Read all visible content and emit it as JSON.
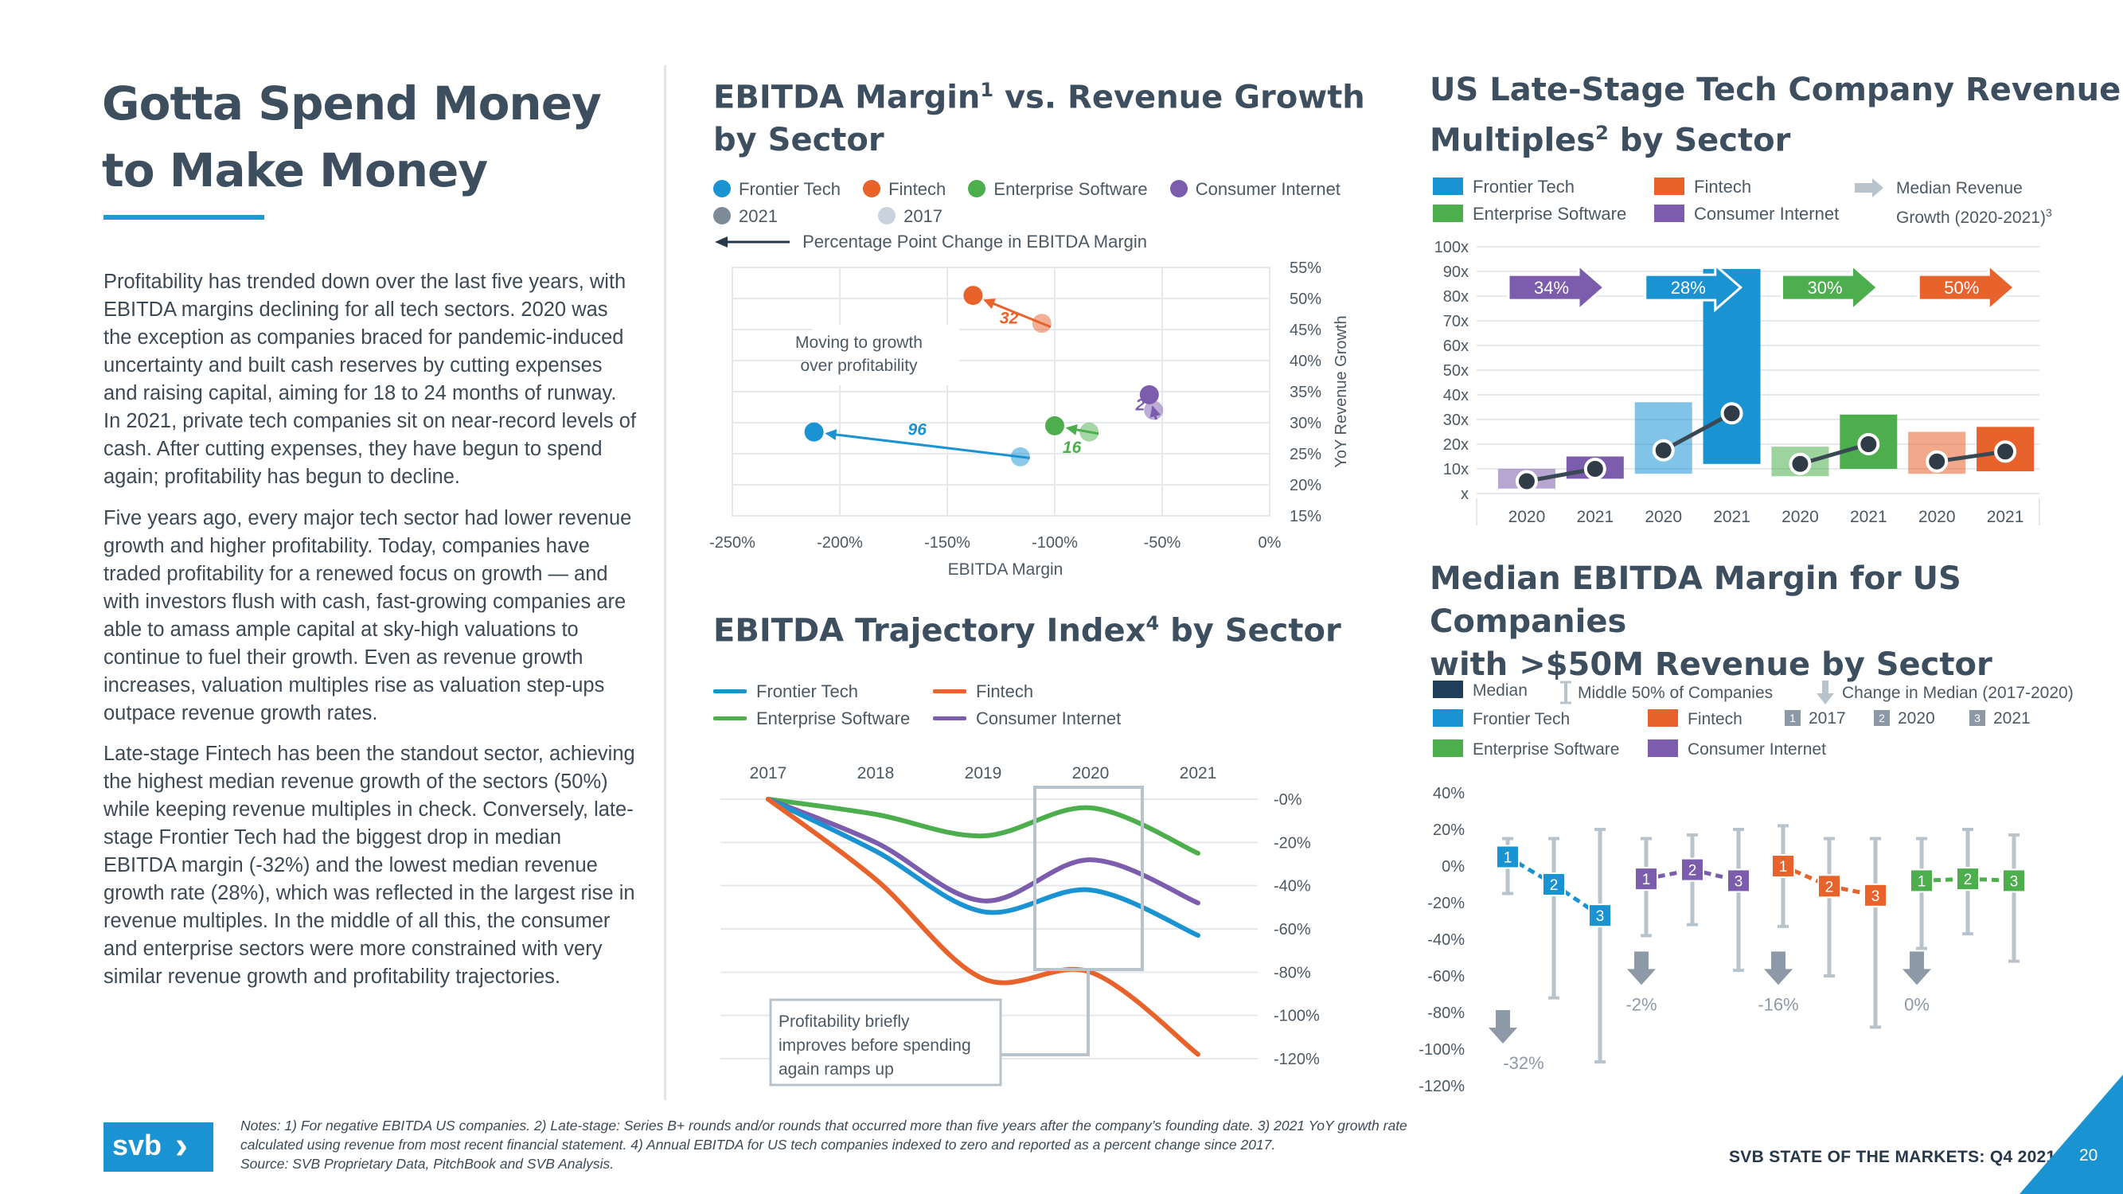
{
  "page": {
    "title_line1": "Gotta Spend Money",
    "title_line2": "to Make Money",
    "paragraphs": [
      "Profitability has trended down over the last five years, with EBITDA margins declining for all tech sectors. 2020 was the exception as companies braced for pandemic-induced uncertainty and built cash reserves by cutting expenses and raising capital, aiming for 18 to 24 months of runway. In 2021, private tech companies sit on near-record levels of cash. After cutting expenses, they have begun to spend again; profitability has begun to decline.",
      "Five years ago, every major tech sector had lower revenue growth and higher profitability. Today, companies have traded profitability for a renewed focus on growth — and with investors flush with cash, fast-growing companies are able to amass ample capital at sky-high valuations to continue to fuel their growth. Even as revenue growth increases, valuation multiples rise as valuation step-ups outpace revenue growth rates.",
      "Late-stage Fintech has been the standout sector, achieving the highest median revenue growth of the sectors (50%) while keeping revenue multiples in check. Conversely, late-stage Frontier Tech had the biggest drop in median EBITDA margin (-32%) and the lowest median revenue growth rate (28%), which was reflected in the largest rise in revenue multiples. In the middle of all this, the consumer and enterprise sectors were more constrained with very similar revenue growth and profitability trajectories."
    ],
    "notes_line1": "Notes: 1) For negative EBITDA US companies. 2) Late-stage: Series B+ rounds and/or rounds that occurred more than five years after the company’s founding date. 3) 2021 YoY growth rate",
    "notes_line2": "calculated using revenue from most recent financial statement. 4) Annual EBITDA for US tech companies indexed to zero and reported as a percent change since 2017.",
    "notes_line3": "Source: SVB Proprietary Data, PitchBook and SVB Analysis.",
    "logo_text": "svb",
    "logo_arrow": "›",
    "footer": "SVB STATE OF THE MARKETS: Q4 2021",
    "page_number": "20"
  },
  "colors": {
    "frontier": "#1a93d3",
    "fintech": "#e8622c",
    "enterprise": "#4cae4c",
    "consumer": "#7b5cad",
    "navy": "#1f3e5a",
    "grey": "#b9c3cc"
  },
  "chart_data": [
    {
      "id": "ebitda_vs_growth",
      "type": "scatter",
      "title": "EBITDA Margin",
      "title_sup": "1",
      "title_rest": " vs. Revenue Growth",
      "title_line2": "by Sector",
      "legend": [
        "Frontier Tech",
        "Fintech",
        "Enterprise Software",
        "Consumer Internet",
        "2021",
        "2017"
      ],
      "legend_arrow": "Percentage Point Change in EBITDA Margin",
      "annotation_line1": "Moving to growth",
      "annotation_line2": "over profitability",
      "xlabel": "EBITDA Margin",
      "ylabel": "YoY Revenue Growth",
      "xlim": [
        -250,
        0
      ],
      "ylim": [
        15,
        55
      ],
      "x_ticks": [
        "-250%",
        "-200%",
        "-150%",
        "-100%",
        "-50%",
        "0%"
      ],
      "y_ticks": [
        "55%",
        "50%",
        "45%",
        "40%",
        "35%",
        "30%",
        "25%",
        "20%",
        "15%"
      ],
      "series": [
        {
          "name": "Frontier Tech",
          "x2017": -116,
          "y2017": 24.5,
          "x2021": -212,
          "y2021": 28.5,
          "change": "96"
        },
        {
          "name": "Fintech",
          "x2017": -106,
          "y2017": 46,
          "x2021": -138,
          "y2021": 50.5,
          "change": "32"
        },
        {
          "name": "Enterprise Software",
          "x2017": -84,
          "y2017": 28.5,
          "x2021": -100,
          "y2021": 29.5,
          "change": "16"
        },
        {
          "name": "Consumer Internet",
          "x2017": -54,
          "y2017": 32,
          "x2021": -56,
          "y2021": 34.5,
          "change": "2"
        }
      ]
    },
    {
      "id": "revenue_multiples",
      "type": "bar",
      "title": "US Late-Stage Tech Company Revenue",
      "title_line2": "Multiples",
      "title_sup": "2",
      "title_rest": " by Sector",
      "legend": [
        "Frontier Tech",
        "Fintech",
        "Enterprise Software",
        "Consumer Internet"
      ],
      "legend_arrow_line1": "Median Revenue",
      "legend_arrow_line2": "Growth (2020-2021)",
      "legend_arrow_sup": "3",
      "ylim": [
        0,
        100
      ],
      "y_ticks": [
        "100x",
        "90x",
        "80x",
        "70x",
        "60x",
        "50x",
        "40x",
        "30x",
        "20x",
        "10x",
        "x"
      ],
      "categories": [
        "2020",
        "2021",
        "2020",
        "2021",
        "2020",
        "2021",
        "2020",
        "2021"
      ],
      "sectors": [
        {
          "name": "Consumer Internet",
          "growth": "34%",
          "y2020": {
            "low": 2,
            "high": 10,
            "median": 5
          },
          "y2021": {
            "low": 6,
            "high": 15,
            "median": 10
          }
        },
        {
          "name": "Frontier Tech",
          "growth": "28%",
          "y2020": {
            "low": 8,
            "high": 37,
            "median": 17.5
          },
          "y2021": {
            "low": 12,
            "high": 91,
            "median": 32.5
          }
        },
        {
          "name": "Enterprise Software",
          "growth": "30%",
          "y2020": {
            "low": 7,
            "high": 19,
            "median": 12
          },
          "y2021": {
            "low": 10,
            "high": 32,
            "median": 20
          }
        },
        {
          "name": "Fintech",
          "growth": "50%",
          "y2020": {
            "low": 8,
            "high": 25,
            "median": 13
          },
          "y2021": {
            "low": 9,
            "high": 27,
            "median": 17
          }
        }
      ]
    },
    {
      "id": "ebitda_trajectory",
      "type": "line",
      "title": "EBITDA Trajectory Index",
      "title_sup": "4",
      "title_rest": " by Sector",
      "legend": [
        "Frontier Tech",
        "Fintech",
        "Enterprise Software",
        "Consumer Internet"
      ],
      "x": [
        "2017",
        "2018",
        "2019",
        "2020",
        "2021"
      ],
      "ylim": [
        -120,
        0
      ],
      "y_ticks": [
        "-0%",
        "-20%",
        "-40%",
        "-60%",
        "-80%",
        "-100%",
        "-120%"
      ],
      "series": [
        {
          "name": "Enterprise Software",
          "values": [
            0,
            -7,
            -17,
            -4,
            -25
          ]
        },
        {
          "name": "Consumer Internet",
          "values": [
            0,
            -20,
            -47,
            -28,
            -48
          ]
        },
        {
          "name": "Frontier Tech",
          "values": [
            0,
            -24,
            -52,
            -42,
            -63
          ]
        },
        {
          "name": "Fintech",
          "values": [
            0,
            -37,
            -83,
            -80,
            -118
          ]
        }
      ],
      "callout_line1": "Profitability briefly",
      "callout_line2": "improves before spending",
      "callout_line3": "again ramps up"
    },
    {
      "id": "median_ebitda_margin",
      "type": "range",
      "title_line1": "Median EBITDA Margin for US Companies",
      "title_line2": "with >$50M Revenue by Sector",
      "legend": [
        "Median",
        "Middle 50% of Companies",
        "Change in Median (2017-2020)",
        "Frontier Tech",
        "Fintech",
        "2017",
        "2020",
        "2021",
        "Enterprise Software",
        "Consumer Internet"
      ],
      "ylim": [
        -120,
        40
      ],
      "y_ticks": [
        "40%",
        "20%",
        "0%",
        "-20%",
        "-40%",
        "-60%",
        "-80%",
        "-100%",
        "-120%"
      ],
      "sectors": [
        {
          "name": "Frontier Tech",
          "change": "-32%",
          "points": [
            {
              "label": "1",
              "median": 5,
              "low": -15,
              "high": 15
            },
            {
              "label": "2",
              "median": -10,
              "low": -72,
              "high": 15
            },
            {
              "label": "3",
              "median": -27,
              "low": -107,
              "high": 20
            }
          ]
        },
        {
          "name": "Consumer Internet",
          "change": "-2%",
          "points": [
            {
              "label": "1",
              "median": -7,
              "low": -38,
              "high": 15
            },
            {
              "label": "2",
              "median": -2,
              "low": -32,
              "high": 17
            },
            {
              "label": "3",
              "median": -8,
              "low": -57,
              "high": 20
            }
          ]
        },
        {
          "name": "Fintech",
          "change": "-16%",
          "points": [
            {
              "label": "1",
              "median": 0,
              "low": -33,
              "high": 22
            },
            {
              "label": "2",
              "median": -11,
              "low": -60,
              "high": 15
            },
            {
              "label": "3",
              "median": -16,
              "low": -88,
              "high": 15
            }
          ]
        },
        {
          "name": "Enterprise Software",
          "change": "0%",
          "points": [
            {
              "label": "1",
              "median": -8,
              "low": -45,
              "high": 15
            },
            {
              "label": "2",
              "median": -7,
              "low": -37,
              "high": 20
            },
            {
              "label": "3",
              "median": -8,
              "low": -52,
              "high": 17
            }
          ]
        }
      ]
    }
  ]
}
